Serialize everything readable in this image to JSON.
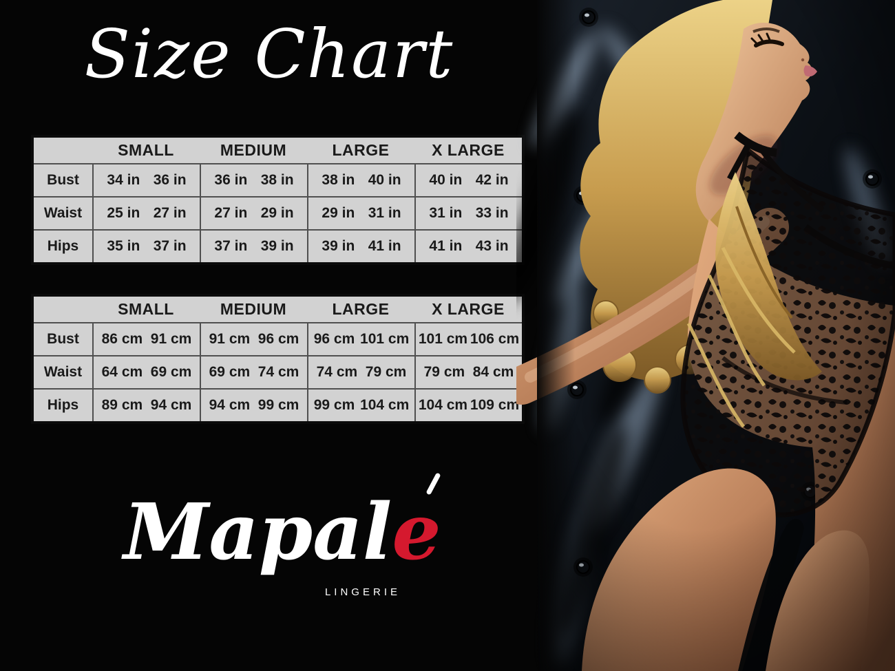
{
  "title": "Size Chart",
  "size_chart": {
    "columns": [
      "SMALL",
      "MEDIUM",
      "LARGE",
      "X LARGE"
    ],
    "tables": [
      {
        "rows": [
          {
            "label": "Bust",
            "cells": [
              [
                "34 in",
                "36 in"
              ],
              [
                "36 in",
                "38 in"
              ],
              [
                "38 in",
                "40 in"
              ],
              [
                "40 in",
                "42 in"
              ]
            ]
          },
          {
            "label": "Waist",
            "cells": [
              [
                "25 in",
                "27 in"
              ],
              [
                "27 in",
                "29 in"
              ],
              [
                "29 in",
                "31 in"
              ],
              [
                "31 in",
                "33 in"
              ]
            ]
          },
          {
            "label": "Hips",
            "cells": [
              [
                "35 in",
                "37 in"
              ],
              [
                "37 in",
                "39 in"
              ],
              [
                "39 in",
                "41 in"
              ],
              [
                "41 in",
                "43 in"
              ]
            ]
          }
        ]
      },
      {
        "rows": [
          {
            "label": "Bust",
            "cells": [
              [
                "86 cm",
                "91 cm"
              ],
              [
                "91 cm",
                "96 cm"
              ],
              [
                "96 cm",
                "101 cm"
              ],
              [
                "101 cm",
                "106 cm"
              ]
            ]
          },
          {
            "label": "Waist",
            "cells": [
              [
                "64 cm",
                "69 cm"
              ],
              [
                "69 cm",
                "74 cm"
              ],
              [
                "74 cm",
                "79 cm"
              ],
              [
                "79 cm",
                "84 cm"
              ]
            ]
          },
          {
            "label": "Hips",
            "cells": [
              [
                "89 cm",
                "94 cm"
              ],
              [
                "94 cm",
                "99 cm"
              ],
              [
                "99 cm",
                "104 cm"
              ],
              [
                "104 cm",
                "109 cm"
              ]
            ]
          }
        ]
      }
    ]
  },
  "brand": {
    "wordmark_main": "Mapal",
    "wordmark_accent_letter": "e",
    "tagline": "LINGERIE"
  },
  "photo": {
    "description": "Model with long blonde curls wearing a black floral lace bodysuit, leaning back against a dark blue button-tufted leather backdrop"
  },
  "colors": {
    "background": "#050505",
    "table_background": "#d2d2d2",
    "table_border": "#4f4f4f",
    "table_text": "#1a1a1a",
    "accent_red": "#d5192e",
    "text_white": "#ffffff"
  }
}
